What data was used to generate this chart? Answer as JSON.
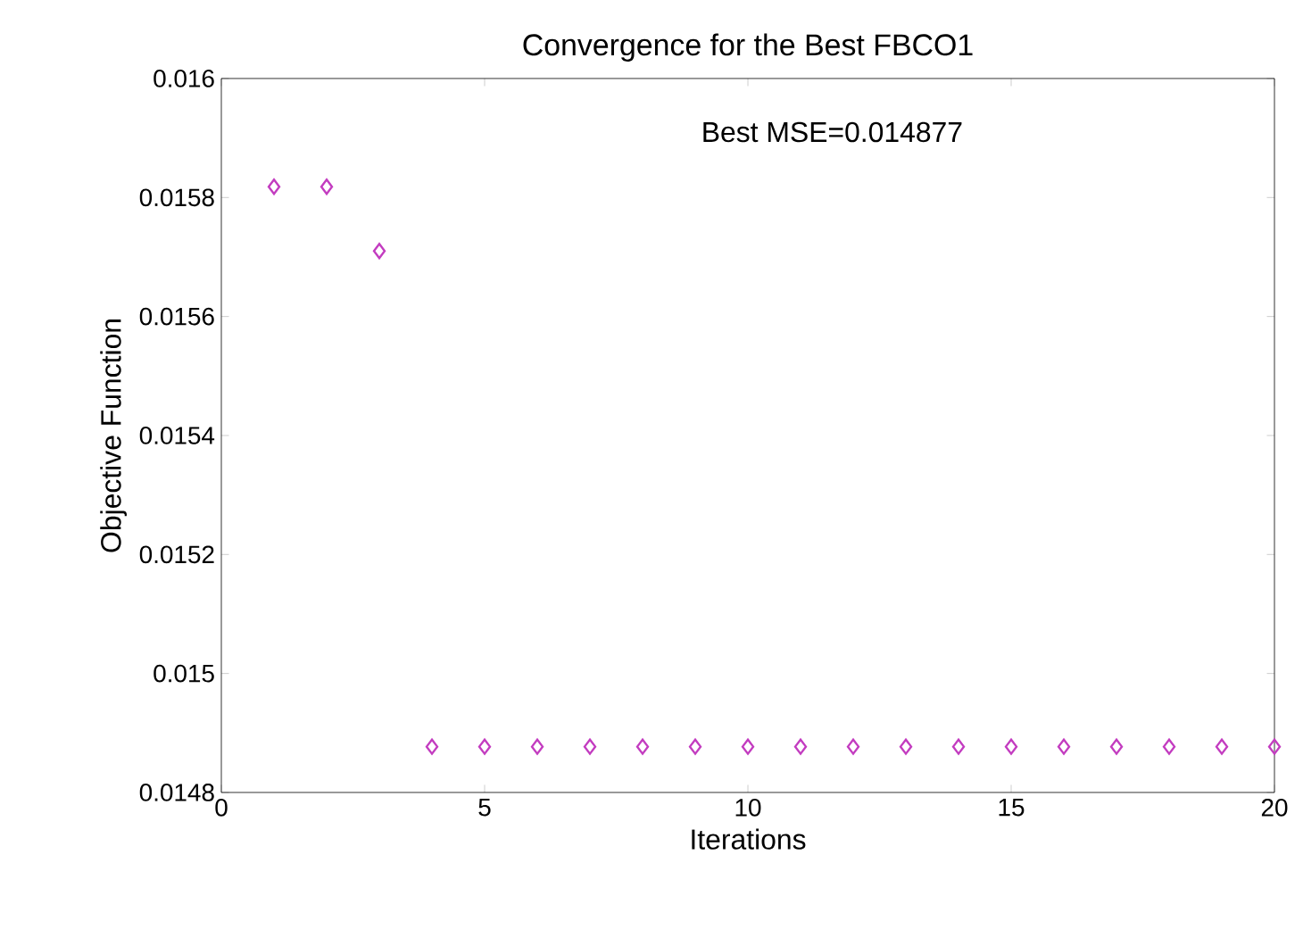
{
  "chart_data": {
    "type": "scatter",
    "title": "Convergence for the Best FBCO1",
    "xlabel": "Iterations",
    "ylabel": "Objective Function",
    "annotations": [
      "Best MSE=0.014877"
    ],
    "x": [
      1,
      2,
      3,
      4,
      5,
      6,
      7,
      8,
      9,
      10,
      11,
      12,
      13,
      14,
      15,
      16,
      17,
      18,
      19,
      20
    ],
    "series": [
      {
        "color": "#c33cc0",
        "values": [
          0.015818,
          0.015818,
          0.01571,
          0.014877,
          0.014877,
          0.014877,
          0.014877,
          0.014877,
          0.014877,
          0.014877,
          0.014877,
          0.014877,
          0.014877,
          0.014877,
          0.014877,
          0.014877,
          0.014877,
          0.014877,
          0.014877,
          0.014877
        ]
      }
    ],
    "marker": "diamond",
    "xlim": [
      0,
      20
    ],
    "ylim": [
      0.0148,
      0.016
    ],
    "xticks": [
      0,
      5,
      10,
      15,
      20
    ],
    "yticks": [
      0.0148,
      0.015,
      0.0152,
      0.0154,
      0.0156,
      0.0158,
      0.016
    ]
  }
}
